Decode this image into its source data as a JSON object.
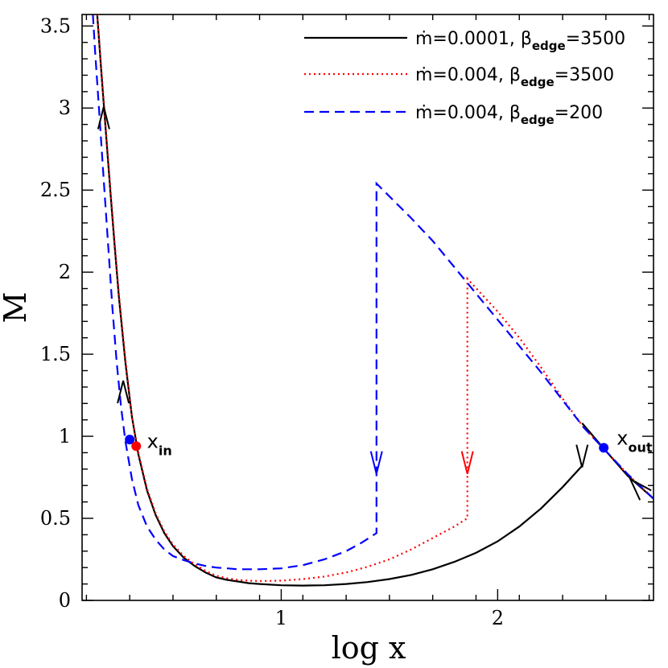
{
  "chart_data": {
    "type": "line",
    "xlabel": "log x",
    "ylabel": "M",
    "xlim": [
      0.08,
      2.72
    ],
    "ylim": [
      0,
      3.57
    ],
    "xticks": [
      {
        "v": 1,
        "label": "1"
      },
      {
        "v": 2,
        "label": "2"
      }
    ],
    "yticks": [
      {
        "v": 0,
        "label": "0"
      },
      {
        "v": 0.5,
        "label": "0.5"
      },
      {
        "v": 1,
        "label": "1"
      },
      {
        "v": 1.5,
        "label": "1.5"
      },
      {
        "v": 2,
        "label": "2"
      },
      {
        "v": 2.5,
        "label": "2.5"
      },
      {
        "v": 3,
        "label": "3"
      },
      {
        "v": 3.5,
        "label": "3.5"
      }
    ],
    "legend_position": "top-right",
    "legend": [
      {
        "main": "ṁ=0.0001,  β",
        "sub": "edge",
        "tail": "=3500",
        "color": "#000000",
        "dash": "none"
      },
      {
        "main": "ṁ=0.004,  β",
        "sub": "edge",
        "tail": "=3500",
        "color": "#ff0000",
        "dash": "dotted"
      },
      {
        "main": "ṁ=0.004,  β",
        "sub": "edge",
        "tail": "=200",
        "color": "#0000ff",
        "dash": "dashed"
      }
    ],
    "series": [
      {
        "key": "s1",
        "color": "#000000",
        "dash": "none",
        "x": [
          0.15,
          0.17,
          0.19,
          0.21,
          0.23,
          0.25,
          0.28,
          0.31,
          0.34,
          0.38,
          0.42,
          0.46,
          0.5,
          0.55,
          0.6,
          0.65,
          0.7,
          0.75,
          0.8,
          0.85,
          0.9,
          1.0,
          1.1,
          1.2,
          1.3,
          1.4,
          1.5,
          1.6,
          1.7,
          1.8,
          1.9,
          2.0,
          2.1,
          2.2,
          2.3,
          2.39
        ],
        "y": [
          3.57,
          3.2,
          2.85,
          2.5,
          2.17,
          1.85,
          1.45,
          1.12,
          0.89,
          0.67,
          0.52,
          0.41,
          0.33,
          0.26,
          0.21,
          0.17,
          0.14,
          0.125,
          0.115,
          0.105,
          0.1,
          0.092,
          0.09,
          0.092,
          0.1,
          0.112,
          0.13,
          0.155,
          0.19,
          0.235,
          0.29,
          0.36,
          0.45,
          0.56,
          0.69,
          0.82
        ]
      },
      {
        "key": "s1b",
        "color": "#000000",
        "dash": "none",
        "x": [
          2.39,
          2.5,
          2.6,
          2.72
        ],
        "y": [
          1.08,
          0.91,
          0.76,
          0.62
        ]
      },
      {
        "key": "s2",
        "color": "#ff0000",
        "dash": "dotted",
        "x": [
          0.15,
          0.17,
          0.19,
          0.21,
          0.23,
          0.25,
          0.28,
          0.31,
          0.34,
          0.38,
          0.42,
          0.46,
          0.5,
          0.55,
          0.6,
          0.65,
          0.7,
          0.75,
          0.8,
          0.85,
          0.9,
          1.0,
          1.1,
          1.2,
          1.3,
          1.4,
          1.5,
          1.6,
          1.7,
          1.8,
          1.86,
          1.86,
          2.0,
          2.1,
          2.2,
          2.3,
          2.4,
          2.5,
          2.6,
          2.72
        ],
        "y": [
          3.57,
          3.22,
          2.87,
          2.52,
          2.19,
          1.87,
          1.47,
          1.12,
          0.9,
          0.68,
          0.53,
          0.42,
          0.34,
          0.27,
          0.22,
          0.18,
          0.15,
          0.135,
          0.125,
          0.12,
          0.118,
          0.12,
          0.13,
          0.145,
          0.17,
          0.205,
          0.25,
          0.31,
          0.38,
          0.45,
          0.5,
          1.96,
          1.76,
          1.6,
          1.42,
          1.23,
          1.05,
          0.91,
          0.77,
          0.62
        ]
      },
      {
        "key": "s3",
        "color": "#0000ff",
        "dash": "dashed",
        "x": [
          0.13,
          0.14,
          0.16,
          0.18,
          0.2,
          0.22,
          0.24,
          0.26,
          0.28,
          0.31,
          0.34,
          0.38,
          0.42,
          0.46,
          0.5,
          0.55,
          0.6,
          0.65,
          0.7,
          0.75,
          0.8,
          0.85,
          0.9,
          1.0,
          1.1,
          1.2,
          1.3,
          1.37,
          1.44,
          1.44,
          1.6,
          1.7,
          1.8,
          1.9,
          2.0,
          2.1,
          2.2,
          2.3,
          2.4,
          2.5,
          2.6,
          2.72
        ],
        "y": [
          3.57,
          3.35,
          2.96,
          2.56,
          2.17,
          1.78,
          1.45,
          1.18,
          0.97,
          0.74,
          0.58,
          0.45,
          0.37,
          0.31,
          0.27,
          0.245,
          0.225,
          0.21,
          0.2,
          0.195,
          0.19,
          0.19,
          0.19,
          0.195,
          0.215,
          0.25,
          0.3,
          0.35,
          0.41,
          2.54,
          2.33,
          2.19,
          2.03,
          1.87,
          1.71,
          1.55,
          1.39,
          1.22,
          1.05,
          0.91,
          0.77,
          0.62
        ]
      }
    ],
    "flow_arrows": [
      {
        "x": 0.18,
        "y": 2.95,
        "dir": "up",
        "color": "#000000"
      },
      {
        "x": 0.27,
        "y": 1.28,
        "dir": "up",
        "color": "#000000"
      },
      {
        "x": 1.44,
        "y": 0.83,
        "dir": "down",
        "color": "#0000ff"
      },
      {
        "x": 1.86,
        "y": 0.83,
        "dir": "down",
        "color": "#ff0000"
      },
      {
        "x": 2.39,
        "y": 0.87,
        "dir": "down",
        "color": "#000000"
      },
      {
        "x": 2.65,
        "y": 0.68,
        "dir": "upleft",
        "color": "#000000"
      }
    ],
    "critical_points": [
      {
        "x": 0.3,
        "y": 0.98,
        "color": "#0000ff"
      },
      {
        "x": 0.33,
        "y": 0.94,
        "color": "#ff0000"
      },
      {
        "x": 2.49,
        "y": 0.93,
        "color": "#0000ff"
      }
    ],
    "annotations": [
      {
        "main": "x",
        "sub": "in",
        "x": 0.38,
        "y": 0.93
      },
      {
        "main": "x",
        "sub": "out",
        "x": 2.55,
        "y": 0.95
      }
    ]
  }
}
